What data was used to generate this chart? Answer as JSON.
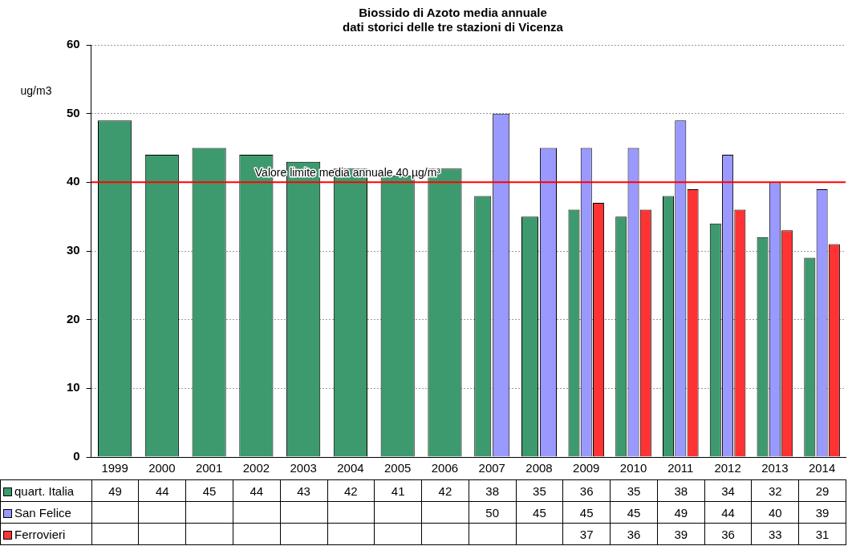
{
  "chart_data": {
    "type": "bar",
    "title": "Biossido di Azoto media annuale",
    "subtitle": "dati storici delle tre stazioni di Vicenza",
    "ylabel": "ug/m3",
    "categories": [
      "1999",
      "2000",
      "2001",
      "2002",
      "2003",
      "2004",
      "2005",
      "2006",
      "2007",
      "2008",
      "2009",
      "2010",
      "2011",
      "2012",
      "2013",
      "2014"
    ],
    "series": [
      {
        "name": "quart. Italia",
        "color": "#3d9a6e",
        "values": [
          49,
          44,
          45,
          44,
          43,
          42,
          41,
          42,
          38,
          35,
          36,
          35,
          38,
          34,
          32,
          29
        ]
      },
      {
        "name": "San Felice",
        "color": "#9999ff",
        "values": [
          null,
          null,
          null,
          null,
          null,
          null,
          null,
          null,
          50,
          45,
          45,
          45,
          49,
          44,
          40,
          39
        ]
      },
      {
        "name": "Ferrovieri",
        "color": "#ff3333",
        "values": [
          null,
          null,
          null,
          null,
          null,
          null,
          null,
          null,
          null,
          null,
          37,
          36,
          39,
          36,
          33,
          31
        ]
      }
    ],
    "ylim": [
      0,
      60
    ],
    "yticks": [
      0,
      10,
      20,
      30,
      40,
      50,
      60
    ],
    "grid": "y",
    "ref_lines": [
      {
        "axis": "y",
        "value": 40,
        "label": "Valore limite media annuale 40 µg/m³",
        "color": "#ff0000"
      }
    ],
    "legend": "bottom",
    "data_labels": true
  }
}
